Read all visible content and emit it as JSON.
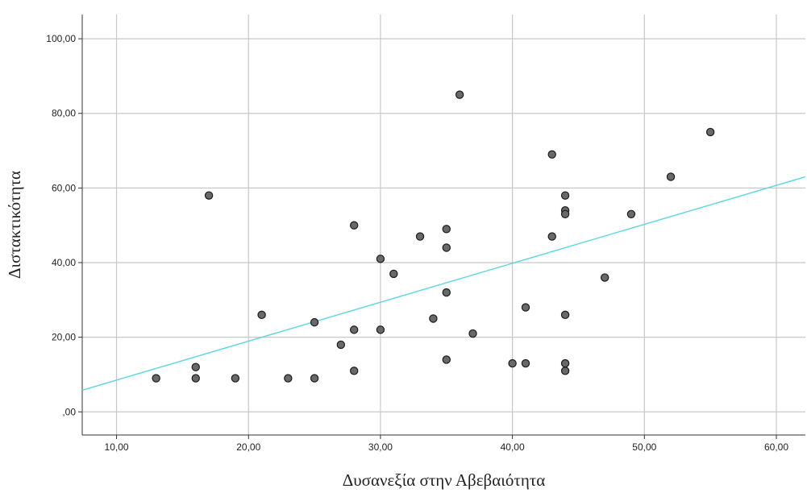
{
  "chart_data": {
    "type": "scatter",
    "xlabel": "Δυσανεξία στην Αβεβαιότητα",
    "ylabel": "Διστακτικότητα",
    "xlim": [
      7.4,
      62.2
    ],
    "ylim": [
      -6.2,
      106.5
    ],
    "x_ticks": [
      10,
      20,
      30,
      40,
      50,
      60
    ],
    "x_tick_labels": [
      "10,00",
      "20,00",
      "30,00",
      "40,00",
      "50,00",
      "60,00"
    ],
    "y_ticks": [
      0,
      20,
      40,
      60,
      80,
      100
    ],
    "y_tick_labels": [
      ",00",
      "20,00",
      "40,00",
      "60,00",
      "80,00",
      "100,00"
    ],
    "grid": true,
    "marker_color": "#696969",
    "marker_edge_color": "#1a1a1a",
    "fit_line_color": "#5ad8dc",
    "fit_line": {
      "x": [
        7.4,
        62.2
      ],
      "y": [
        5.8,
        63.0
      ]
    },
    "points": [
      {
        "x": 13,
        "y": 9
      },
      {
        "x": 16,
        "y": 12
      },
      {
        "x": 16,
        "y": 9
      },
      {
        "x": 17,
        "y": 58
      },
      {
        "x": 19,
        "y": 9
      },
      {
        "x": 21,
        "y": 26
      },
      {
        "x": 23,
        "y": 9
      },
      {
        "x": 25,
        "y": 24
      },
      {
        "x": 25,
        "y": 9
      },
      {
        "x": 27,
        "y": 18
      },
      {
        "x": 28,
        "y": 50
      },
      {
        "x": 28,
        "y": 22
      },
      {
        "x": 28,
        "y": 11
      },
      {
        "x": 30,
        "y": 41
      },
      {
        "x": 30,
        "y": 22
      },
      {
        "x": 31,
        "y": 37
      },
      {
        "x": 33,
        "y": 47
      },
      {
        "x": 34,
        "y": 25
      },
      {
        "x": 35,
        "y": 49
      },
      {
        "x": 35,
        "y": 44
      },
      {
        "x": 35,
        "y": 32
      },
      {
        "x": 35,
        "y": 14
      },
      {
        "x": 36,
        "y": 85
      },
      {
        "x": 37,
        "y": 21
      },
      {
        "x": 40,
        "y": 13
      },
      {
        "x": 41,
        "y": 28
      },
      {
        "x": 41,
        "y": 13
      },
      {
        "x": 43,
        "y": 69
      },
      {
        "x": 43,
        "y": 47
      },
      {
        "x": 44,
        "y": 58
      },
      {
        "x": 44,
        "y": 54
      },
      {
        "x": 44,
        "y": 53
      },
      {
        "x": 44,
        "y": 26
      },
      {
        "x": 44,
        "y": 13
      },
      {
        "x": 44,
        "y": 11
      },
      {
        "x": 47,
        "y": 36
      },
      {
        "x": 49,
        "y": 53
      },
      {
        "x": 52,
        "y": 63
      },
      {
        "x": 55,
        "y": 75
      }
    ]
  }
}
